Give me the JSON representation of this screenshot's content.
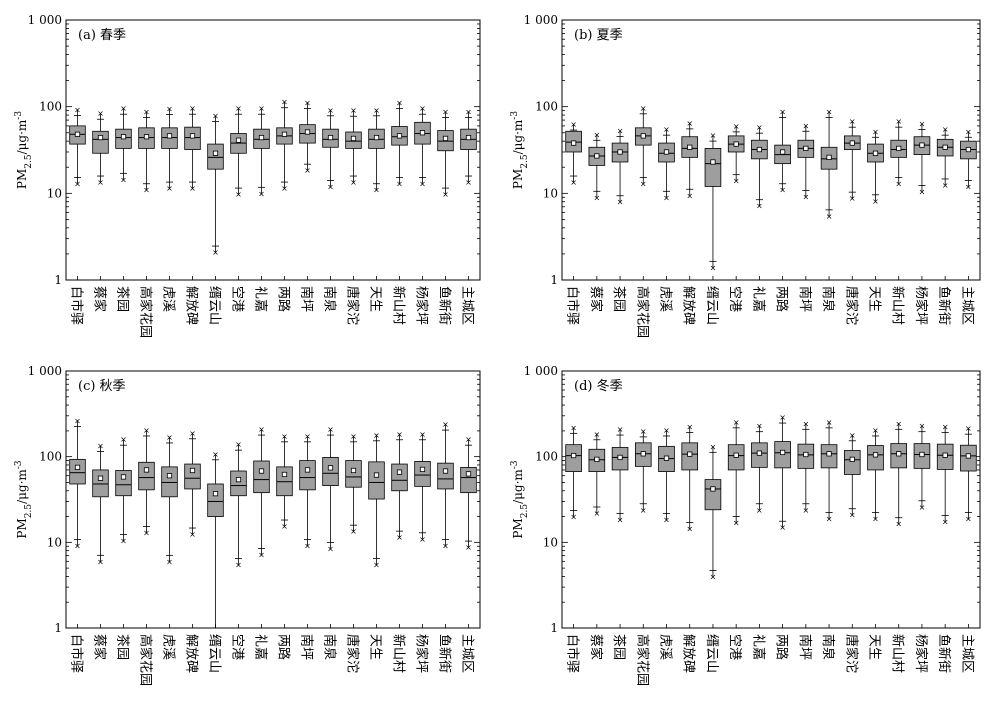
{
  "chart_data": [
    {
      "type": "box",
      "title": "(a) 春季",
      "ylabel": "PM2.5/μg·m-3",
      "ylabel_parts": {
        "main": "PM",
        "sub": "2.5",
        "unit": "/μg·m",
        "sup": "-3"
      },
      "yscale": "log",
      "ylim": [
        1,
        1000
      ],
      "yticks": [
        "1",
        "10",
        "100",
        "1 000"
      ],
      "categories": [
        "白市驿",
        "蔡家",
        "茶园",
        "高家花园",
        "虎溪",
        "解放碑",
        "缙云山",
        "空港",
        "礼嘉",
        "两路",
        "南坪",
        "南泉",
        "唐家沱",
        "天生",
        "新山村",
        "杨家坪",
        "鱼新街",
        "主城区"
      ],
      "stats": [
        {
          "p1": 13,
          "q1": 37,
          "median": 48,
          "q3": 60,
          "p99": 93,
          "mean": 48
        },
        {
          "p1": 13.5,
          "q1": 29,
          "median": 42,
          "q3": 52,
          "p99": 84,
          "mean": 44
        },
        {
          "p1": 14.5,
          "q1": 33,
          "median": 44,
          "q3": 55,
          "p99": 96,
          "mean": 45
        },
        {
          "p1": 11,
          "q1": 33,
          "median": 44,
          "q3": 57,
          "p99": 88,
          "mean": 45
        },
        {
          "p1": 11.5,
          "q1": 33,
          "median": 44,
          "q3": 57,
          "p99": 95,
          "mean": 46
        },
        {
          "p1": 11.5,
          "q1": 32,
          "median": 44,
          "q3": 58,
          "p99": 96,
          "mean": 46
        },
        {
          "p1": 2.1,
          "q1": 19,
          "median": 26,
          "q3": 37,
          "p99": 79,
          "mean": 29
        },
        {
          "p1": 9.8,
          "q1": 29,
          "median": 38,
          "q3": 49,
          "p99": 96,
          "mean": 41
        },
        {
          "p1": 10,
          "q1": 33,
          "median": 42,
          "q3": 55,
          "p99": 96,
          "mean": 44
        },
        {
          "p1": 11.5,
          "q1": 37,
          "median": 46,
          "q3": 57,
          "p99": 114,
          "mean": 48
        },
        {
          "p1": 18.5,
          "q1": 38,
          "median": 49,
          "q3": 62,
          "p99": 112,
          "mean": 51
        },
        {
          "p1": 12,
          "q1": 34,
          "median": 42,
          "q3": 55,
          "p99": 92,
          "mean": 44
        },
        {
          "p1": 13.5,
          "q1": 33,
          "median": 40,
          "q3": 51,
          "p99": 91,
          "mean": 43
        },
        {
          "p1": 11,
          "q1": 33,
          "median": 42,
          "q3": 55,
          "p99": 92,
          "mean": 44
        },
        {
          "p1": 13,
          "q1": 36,
          "median": 45,
          "q3": 59,
          "p99": 112,
          "mean": 46
        },
        {
          "p1": 13,
          "q1": 37,
          "median": 49,
          "q3": 66,
          "p99": 96,
          "mean": 50
        },
        {
          "p1": 9.8,
          "q1": 31,
          "median": 40,
          "q3": 53,
          "p99": 88,
          "mean": 43
        },
        {
          "p1": 13.5,
          "q1": 32,
          "median": 42,
          "q3": 55,
          "p99": 88,
          "mean": 44
        }
      ]
    },
    {
      "type": "box",
      "title": "(b) 夏季",
      "ylabel": "PM2.5/μg·m-3",
      "ylabel_parts": {
        "main": "PM",
        "sub": "2.5",
        "unit": "/μg·m",
        "sup": "-3"
      },
      "yscale": "log",
      "ylim": [
        1,
        1000
      ],
      "yticks": [
        "1",
        "10",
        "100",
        "1 000"
      ],
      "categories": [
        "白市驿",
        "蔡家",
        "茶园",
        "高家花园",
        "虎溪",
        "解放碑",
        "缙云山",
        "空港",
        "礼嘉",
        "两路",
        "南坪",
        "南泉",
        "唐家沱",
        "天生",
        "新山村",
        "杨家坪",
        "鱼新街",
        "主城区"
      ],
      "stats": [
        {
          "p1": 13.5,
          "q1": 30,
          "median": 39,
          "q3": 52,
          "p99": 63,
          "mean": 38
        },
        {
          "p1": 9,
          "q1": 21,
          "median": 27,
          "q3": 34,
          "p99": 48,
          "mean": 27
        },
        {
          "p1": 8,
          "q1": 23,
          "median": 30,
          "q3": 38,
          "p99": 53,
          "mean": 30
        },
        {
          "p1": 13,
          "q1": 36,
          "median": 46,
          "q3": 57,
          "p99": 97,
          "mean": 46
        },
        {
          "p1": 9,
          "q1": 23,
          "median": 29,
          "q3": 38,
          "p99": 55,
          "mean": 30
        },
        {
          "p1": 9.5,
          "q1": 26,
          "median": 33,
          "q3": 45,
          "p99": 65,
          "mean": 34
        },
        {
          "p1": 1.4,
          "q1": 12,
          "median": 22,
          "q3": 33,
          "p99": 47,
          "mean": 23
        },
        {
          "p1": 14,
          "q1": 30,
          "median": 37,
          "q3": 46,
          "p99": 60,
          "mean": 37
        },
        {
          "p1": 7.2,
          "q1": 25,
          "median": 32,
          "q3": 41,
          "p99": 58,
          "mean": 32
        },
        {
          "p1": 11,
          "q1": 22,
          "median": 28,
          "q3": 36,
          "p99": 88,
          "mean": 30
        },
        {
          "p1": 9.2,
          "q1": 26,
          "median": 33,
          "q3": 41,
          "p99": 61,
          "mean": 33
        },
        {
          "p1": 5.5,
          "q1": 19,
          "median": 25,
          "q3": 34,
          "p99": 88,
          "mean": 26
        },
        {
          "p1": 8.8,
          "q1": 32,
          "median": 38,
          "q3": 46,
          "p99": 68,
          "mean": 38
        },
        {
          "p1": 8.2,
          "q1": 23,
          "median": 29,
          "q3": 37,
          "p99": 52,
          "mean": 29
        },
        {
          "p1": 13,
          "q1": 26,
          "median": 32,
          "q3": 41,
          "p99": 68,
          "mean": 33
        },
        {
          "p1": 10.5,
          "q1": 28,
          "median": 36,
          "q3": 45,
          "p99": 64,
          "mean": 36
        },
        {
          "p1": 12.5,
          "q1": 27,
          "median": 34,
          "q3": 42,
          "p99": 55,
          "mean": 34
        },
        {
          "p1": 12,
          "q1": 25,
          "median": 32,
          "q3": 40,
          "p99": 52,
          "mean": 32
        }
      ]
    },
    {
      "type": "box",
      "title": "(c) 秋季",
      "ylabel": "PM2.5/μg·m-3",
      "ylabel_parts": {
        "main": "PM",
        "sub": "2.5",
        "unit": "/μg·m",
        "sup": "-3"
      },
      "yscale": "log",
      "ylim": [
        1,
        1000
      ],
      "yticks": [
        "1",
        "10",
        "100",
        "1 000"
      ],
      "categories": [
        "白市驿",
        "蔡家",
        "茶园",
        "高家花园",
        "虎溪",
        "解放碑",
        "缙云山",
        "空港",
        "礼嘉",
        "两路",
        "南坪",
        "南泉",
        "唐家沱",
        "天生",
        "新山村",
        "杨家坪",
        "鱼新街",
        "主城区"
      ],
      "stats": [
        {
          "p1": 9.2,
          "q1": 48,
          "median": 65,
          "q3": 93,
          "p99": 265,
          "mean": 75
        },
        {
          "p1": 6,
          "q1": 34,
          "median": 48,
          "q3": 70,
          "p99": 135,
          "mean": 56
        },
        {
          "p1": 10.5,
          "q1": 35,
          "median": 47,
          "q3": 69,
          "p99": 160,
          "mean": 58
        },
        {
          "p1": 13,
          "q1": 41,
          "median": 57,
          "q3": 86,
          "p99": 205,
          "mean": 70
        },
        {
          "p1": 6,
          "q1": 34,
          "median": 50,
          "q3": 76,
          "p99": 170,
          "mean": 60
        },
        {
          "p1": 12.5,
          "q1": 42,
          "median": 56,
          "q3": 82,
          "p99": 190,
          "mean": 69
        },
        {
          "p1": 1,
          "q1": 20,
          "median": 30,
          "q3": 48,
          "p99": 108,
          "mean": 37
        },
        {
          "p1": 5.5,
          "q1": 35,
          "median": 46,
          "q3": 68,
          "p99": 140,
          "mean": 54
        },
        {
          "p1": 7.2,
          "q1": 38,
          "median": 54,
          "q3": 89,
          "p99": 210,
          "mean": 68
        },
        {
          "p1": 15.5,
          "q1": 35,
          "median": 51,
          "q3": 76,
          "p99": 175,
          "mean": 62
        },
        {
          "p1": 9.2,
          "q1": 41,
          "median": 57,
          "q3": 90,
          "p99": 175,
          "mean": 70
        },
        {
          "p1": 8.5,
          "q1": 46,
          "median": 64,
          "q3": 98,
          "p99": 210,
          "mean": 74
        },
        {
          "p1": 13.5,
          "q1": 44,
          "median": 58,
          "q3": 90,
          "p99": 175,
          "mean": 69
        },
        {
          "p1": 5.5,
          "q1": 32,
          "median": 50,
          "q3": 87,
          "p99": 180,
          "mean": 61
        },
        {
          "p1": 11.5,
          "q1": 40,
          "median": 53,
          "q3": 82,
          "p99": 185,
          "mean": 66
        },
        {
          "p1": 11,
          "q1": 45,
          "median": 61,
          "q3": 88,
          "p99": 185,
          "mean": 71
        },
        {
          "p1": 9.2,
          "q1": 42,
          "median": 55,
          "q3": 84,
          "p99": 240,
          "mean": 68
        },
        {
          "p1": 8.8,
          "q1": 38,
          "median": 57,
          "q3": 75,
          "p99": 160,
          "mean": 63
        }
      ]
    },
    {
      "type": "box",
      "title": "(d) 冬季",
      "ylabel": "PM2.5/μg·m-3",
      "ylabel_parts": {
        "main": "PM",
        "sub": "2.5",
        "unit": "/μg·m",
        "sup": "-3"
      },
      "yscale": "log",
      "ylim": [
        1,
        1000
      ],
      "yticks": [
        "1",
        "10",
        "100",
        "1 000"
      ],
      "categories": [
        "白市驿",
        "蔡家",
        "茶园",
        "高家花园",
        "虎溪",
        "解放碑",
        "缙云山",
        "空港",
        "礼嘉",
        "两路",
        "南坪",
        "南泉",
        "唐家沱",
        "天生",
        "新山村",
        "杨家坪",
        "鱼新街",
        "主城区"
      ],
      "stats": [
        {
          "p1": 20,
          "q1": 67,
          "median": 103,
          "q3": 138,
          "p99": 220,
          "mean": 103
        },
        {
          "p1": 22,
          "q1": 67,
          "median": 92,
          "q3": 122,
          "p99": 185,
          "mean": 93
        },
        {
          "p1": 18.5,
          "q1": 70,
          "median": 98,
          "q3": 128,
          "p99": 210,
          "mean": 98
        },
        {
          "p1": 24,
          "q1": 77,
          "median": 108,
          "q3": 145,
          "p99": 200,
          "mean": 108
        },
        {
          "p1": 18.5,
          "q1": 67,
          "median": 95,
          "q3": 132,
          "p99": 205,
          "mean": 96
        },
        {
          "p1": 14.5,
          "q1": 70,
          "median": 107,
          "q3": 145,
          "p99": 225,
          "mean": 107
        },
        {
          "p1": 4,
          "q1": 24,
          "median": 42,
          "q3": 54,
          "p99": 132,
          "mean": 42
        },
        {
          "p1": 17,
          "q1": 70,
          "median": 103,
          "q3": 138,
          "p99": 255,
          "mean": 104
        },
        {
          "p1": 24,
          "q1": 75,
          "median": 110,
          "q3": 145,
          "p99": 230,
          "mean": 110
        },
        {
          "p1": 15,
          "q1": 74,
          "median": 111,
          "q3": 150,
          "p99": 290,
          "mean": 112
        },
        {
          "p1": 24,
          "q1": 73,
          "median": 105,
          "q3": 140,
          "p99": 245,
          "mean": 106
        },
        {
          "p1": 19,
          "q1": 74,
          "median": 108,
          "q3": 138,
          "p99": 255,
          "mean": 108
        },
        {
          "p1": 21,
          "q1": 62,
          "median": 92,
          "q3": 118,
          "p99": 180,
          "mean": 93
        },
        {
          "p1": 19,
          "q1": 70,
          "median": 105,
          "q3": 135,
          "p99": 205,
          "mean": 105
        },
        {
          "p1": 16.5,
          "q1": 74,
          "median": 108,
          "q3": 142,
          "p99": 245,
          "mean": 108
        },
        {
          "p1": 26,
          "q1": 73,
          "median": 106,
          "q3": 142,
          "p99": 230,
          "mean": 106
        },
        {
          "p1": 17.5,
          "q1": 71,
          "median": 104,
          "q3": 140,
          "p99": 225,
          "mean": 104
        },
        {
          "p1": 19,
          "q1": 68,
          "median": 102,
          "q3": 136,
          "p99": 215,
          "mean": 102
        }
      ]
    }
  ],
  "colors": {
    "box_fill": "#9e9e9e",
    "outline": "#000000",
    "mean_fill": "#ffffff"
  }
}
